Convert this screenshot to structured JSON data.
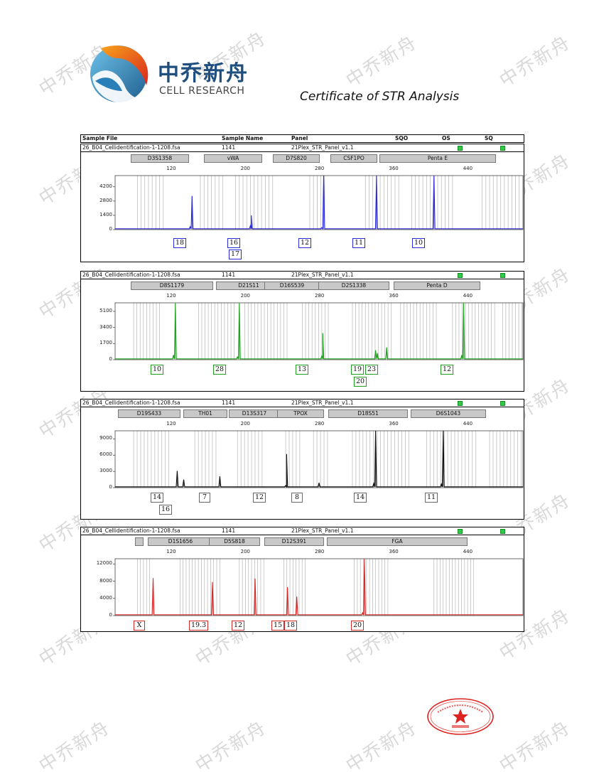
{
  "watermark_text": "中乔新舟",
  "brand": {
    "name_cn": "中乔新舟",
    "name_en": "CELL RESEARCH"
  },
  "certificate_title": "Certificate of STR Analysis",
  "header": {
    "sample_file": "Sample File",
    "sample_name": "Sample Name",
    "panel": "Panel",
    "sqo": "SQO",
    "os": "OS",
    "sq": "SQ"
  },
  "panels": [
    {
      "sample_file": "26_B04_Cellidentification-1-1208.fsa",
      "sample_name": "1141",
      "panel": "21Plex_STR_Panel_v1.1",
      "color": "#2a2ad6",
      "loci": [
        "D3S1358",
        "vWA",
        "D7S820",
        "CSF1PO",
        "Penta E"
      ],
      "x_ticks": [
        "120",
        "200",
        "280",
        "360",
        "440"
      ],
      "y_ticks": [
        "4200",
        "2800",
        "1400",
        "0"
      ],
      "alleles": [
        "18",
        "16",
        "17",
        "12",
        "11",
        "10"
      ]
    },
    {
      "sample_file": "26_B04_Cellidentification-1-1208.fsa",
      "sample_name": "1141",
      "panel": "21Plex_STR_Panel_v1.1",
      "color": "#1fa31f",
      "loci": [
        "D8S1179",
        "D21S11",
        "D16S539",
        "D2S1338",
        "Penta D"
      ],
      "x_ticks": [
        "120",
        "200",
        "280",
        "360",
        "440"
      ],
      "y_ticks": [
        "5100",
        "3400",
        "1700",
        "0"
      ],
      "alleles": [
        "10",
        "28",
        "13",
        "19",
        "23",
        "20",
        "12"
      ]
    },
    {
      "sample_file": "26_B04_Cellidentification-1-1208.fsa",
      "sample_name": "1141",
      "panel": "21Plex_STR_Panel_v1.1",
      "color": "#111111",
      "loci": [
        "D19S433",
        "TH01",
        "D13S317",
        "TPOX",
        "D18S51",
        "D6S1043"
      ],
      "x_ticks": [
        "120",
        "200",
        "280",
        "360",
        "440"
      ],
      "y_ticks": [
        "9000",
        "6000",
        "3000",
        "0"
      ],
      "alleles": [
        "14",
        "16",
        "7",
        "12",
        "8",
        "14",
        "11"
      ]
    },
    {
      "sample_file": "26_B04_Cellidentification-1-1208.fsa",
      "sample_name": "1141",
      "panel": "21Plex_STR_Panel_v1.1",
      "color": "#d62a2a",
      "loci": [
        "",
        "D1S1656",
        "D5S818",
        "D12S391",
        "FGA"
      ],
      "x_ticks": [
        "120",
        "200",
        "280",
        "360",
        "440"
      ],
      "y_ticks": [
        "12000",
        "8000",
        "4000",
        "0"
      ],
      "alleles": [
        "X",
        "19.3",
        "12",
        "15",
        "18",
        "20"
      ]
    }
  ],
  "chart_data": [
    {
      "type": "line",
      "series": [
        {
          "color": "#2a2ad6",
          "peaks": [
            {
              "x": 143,
              "y": 3300
            },
            {
              "x": 141,
              "y": 300
            },
            {
              "x": 207,
              "y": 1400
            },
            {
              "x": 206,
              "y": 400
            },
            {
              "x": 285,
              "y": 5300
            },
            {
              "x": 283,
              "y": 200
            },
            {
              "x": 342,
              "y": 5300
            },
            {
              "x": 404,
              "y": 5300
            }
          ]
        }
      ],
      "xlim": [
        60,
        500
      ],
      "ylim": [
        0,
        5300
      ]
    },
    {
      "type": "line",
      "series": [
        {
          "color": "#1fa31f",
          "peaks": [
            {
              "x": 125,
              "y": 6000
            },
            {
              "x": 123,
              "y": 500
            },
            {
              "x": 194,
              "y": 6000
            },
            {
              "x": 192,
              "y": 300
            },
            {
              "x": 284,
              "y": 2800
            },
            {
              "x": 283,
              "y": 400
            },
            {
              "x": 341,
              "y": 1000
            },
            {
              "x": 343,
              "y": 700
            },
            {
              "x": 353,
              "y": 1300
            },
            {
              "x": 436,
              "y": 6000
            },
            {
              "x": 434,
              "y": 500
            }
          ]
        }
      ],
      "xlim": [
        60,
        500
      ],
      "ylim": [
        0,
        6000
      ]
    },
    {
      "type": "line",
      "series": [
        {
          "color": "#111111",
          "peaks": [
            {
              "x": 127,
              "y": 3100
            },
            {
              "x": 134,
              "y": 1500
            },
            {
              "x": 173,
              "y": 2100
            },
            {
              "x": 245,
              "y": 6200
            },
            {
              "x": 244,
              "y": 400
            },
            {
              "x": 280,
              "y": 900
            },
            {
              "x": 341,
              "y": 10500
            },
            {
              "x": 339,
              "y": 800
            },
            {
              "x": 414,
              "y": 10500
            },
            {
              "x": 412,
              "y": 700
            }
          ]
        }
      ],
      "xlim": [
        60,
        500
      ],
      "ylim": [
        0,
        10500
      ]
    },
    {
      "type": "line",
      "series": [
        {
          "color": "#d62a2a",
          "peaks": [
            {
              "x": 101,
              "y": 8700
            },
            {
              "x": 165,
              "y": 7800
            },
            {
              "x": 211,
              "y": 8600
            },
            {
              "x": 246,
              "y": 6600
            },
            {
              "x": 256,
              "y": 4400
            },
            {
              "x": 329,
              "y": 13200
            },
            {
              "x": 327,
              "y": 700
            }
          ]
        }
      ],
      "xlim": [
        60,
        500
      ],
      "ylim": [
        0,
        13200
      ]
    }
  ]
}
